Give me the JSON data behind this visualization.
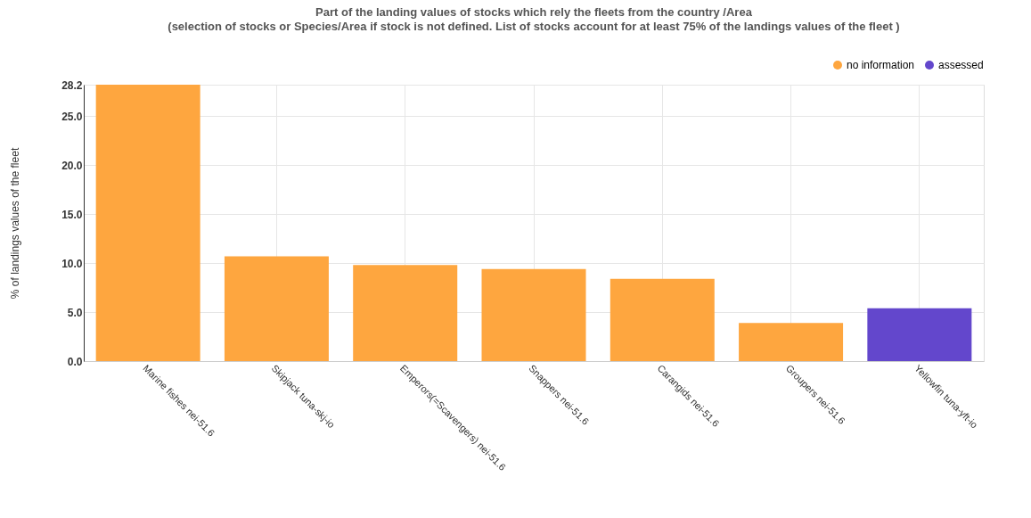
{
  "chart_data": {
    "type": "bar",
    "title": "Part of the landing values of stocks which rely the fleets from the country /Area",
    "subtitle": "(selection of stocks or Species/Area if stock is not defined. List of stocks account for at least 75% of the landings values of the fleet )",
    "ylabel": "% of landings values of the fleet",
    "categories": [
      "Marine fishes nei-51.6",
      "Skipjack tuna-skj-io",
      "Emperors(=Scavengers) nei-51.6",
      "Snappers nei-51.6",
      "Carangids nei-51.6",
      "Groupers nei-51.6",
      "Yellowfin tuna-yft-io"
    ],
    "series": [
      {
        "name": "no information",
        "color": "#fea63f",
        "values": [
          28.2,
          10.7,
          9.8,
          9.4,
          8.4,
          3.9,
          null
        ]
      },
      {
        "name": "assessed",
        "color": "#6347cc",
        "values": [
          null,
          null,
          null,
          null,
          null,
          null,
          5.4
        ]
      }
    ],
    "ylim": [
      0,
      28.2
    ],
    "yticks": [
      {
        "value": 0,
        "label": "0.0"
      },
      {
        "value": 5,
        "label": "5.0"
      },
      {
        "value": 10,
        "label": "10.0"
      },
      {
        "value": 15,
        "label": "15.0"
      },
      {
        "value": 20,
        "label": "20.0"
      },
      {
        "value": 25,
        "label": "25.0"
      },
      28.2
    ],
    "grid": true,
    "legend": "top right"
  }
}
